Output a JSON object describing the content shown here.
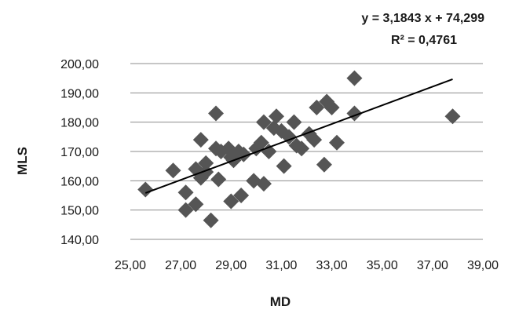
{
  "chart_data": {
    "type": "scatter",
    "xlabel": "MD",
    "ylabel": "MLS",
    "xlim": [
      25,
      39
    ],
    "ylim": [
      140,
      200
    ],
    "x_ticks": [
      "25,00",
      "27,00",
      "29,00",
      "31,00",
      "33,00",
      "35,00",
      "37,00",
      "39,00"
    ],
    "y_ticks": [
      "140,00",
      "150,00",
      "160,00",
      "170,00",
      "180,00",
      "190,00",
      "200,00"
    ],
    "grid": "horizontal",
    "legend": "none",
    "equation": "y = 3,1843 x + 74,299",
    "r_squared": "R² = 0,4761",
    "trendline": {
      "slope": 3.1843,
      "intercept": 74.299,
      "x_range": [
        25.6,
        37.8
      ]
    },
    "colors": {
      "marker": "#555555",
      "trendline": "#000000",
      "grid": "#8c8c8c"
    },
    "series": [
      {
        "marker": "diamond",
        "points": [
          [
            25.6,
            157
          ],
          [
            26.7,
            163.5
          ],
          [
            27.2,
            156
          ],
          [
            27.2,
            150
          ],
          [
            27.6,
            152
          ],
          [
            27.6,
            164
          ],
          [
            27.8,
            174
          ],
          [
            27.8,
            161
          ],
          [
            28.0,
            166
          ],
          [
            28.0,
            163
          ],
          [
            28.2,
            146.5
          ],
          [
            28.4,
            183
          ],
          [
            28.4,
            171
          ],
          [
            28.5,
            160.5
          ],
          [
            28.6,
            170
          ],
          [
            28.9,
            171
          ],
          [
            29.0,
            153
          ],
          [
            29.0,
            168
          ],
          [
            29.1,
            167
          ],
          [
            29.3,
            170
          ],
          [
            29.4,
            155
          ],
          [
            29.5,
            169
          ],
          [
            29.9,
            160
          ],
          [
            30.0,
            171
          ],
          [
            30.2,
            173
          ],
          [
            30.3,
            159
          ],
          [
            30.3,
            180
          ],
          [
            30.5,
            170
          ],
          [
            30.7,
            178
          ],
          [
            30.8,
            182
          ],
          [
            31.0,
            177
          ],
          [
            31.1,
            165
          ],
          [
            31.3,
            175
          ],
          [
            31.5,
            180
          ],
          [
            31.6,
            172
          ],
          [
            31.8,
            171
          ],
          [
            32.1,
            176
          ],
          [
            32.3,
            174
          ],
          [
            32.4,
            185
          ],
          [
            32.7,
            165.5
          ],
          [
            32.8,
            187
          ],
          [
            33.0,
            185
          ],
          [
            33.2,
            173
          ],
          [
            33.9,
            195
          ],
          [
            33.9,
            183
          ],
          [
            37.8,
            182
          ]
        ]
      }
    ]
  }
}
